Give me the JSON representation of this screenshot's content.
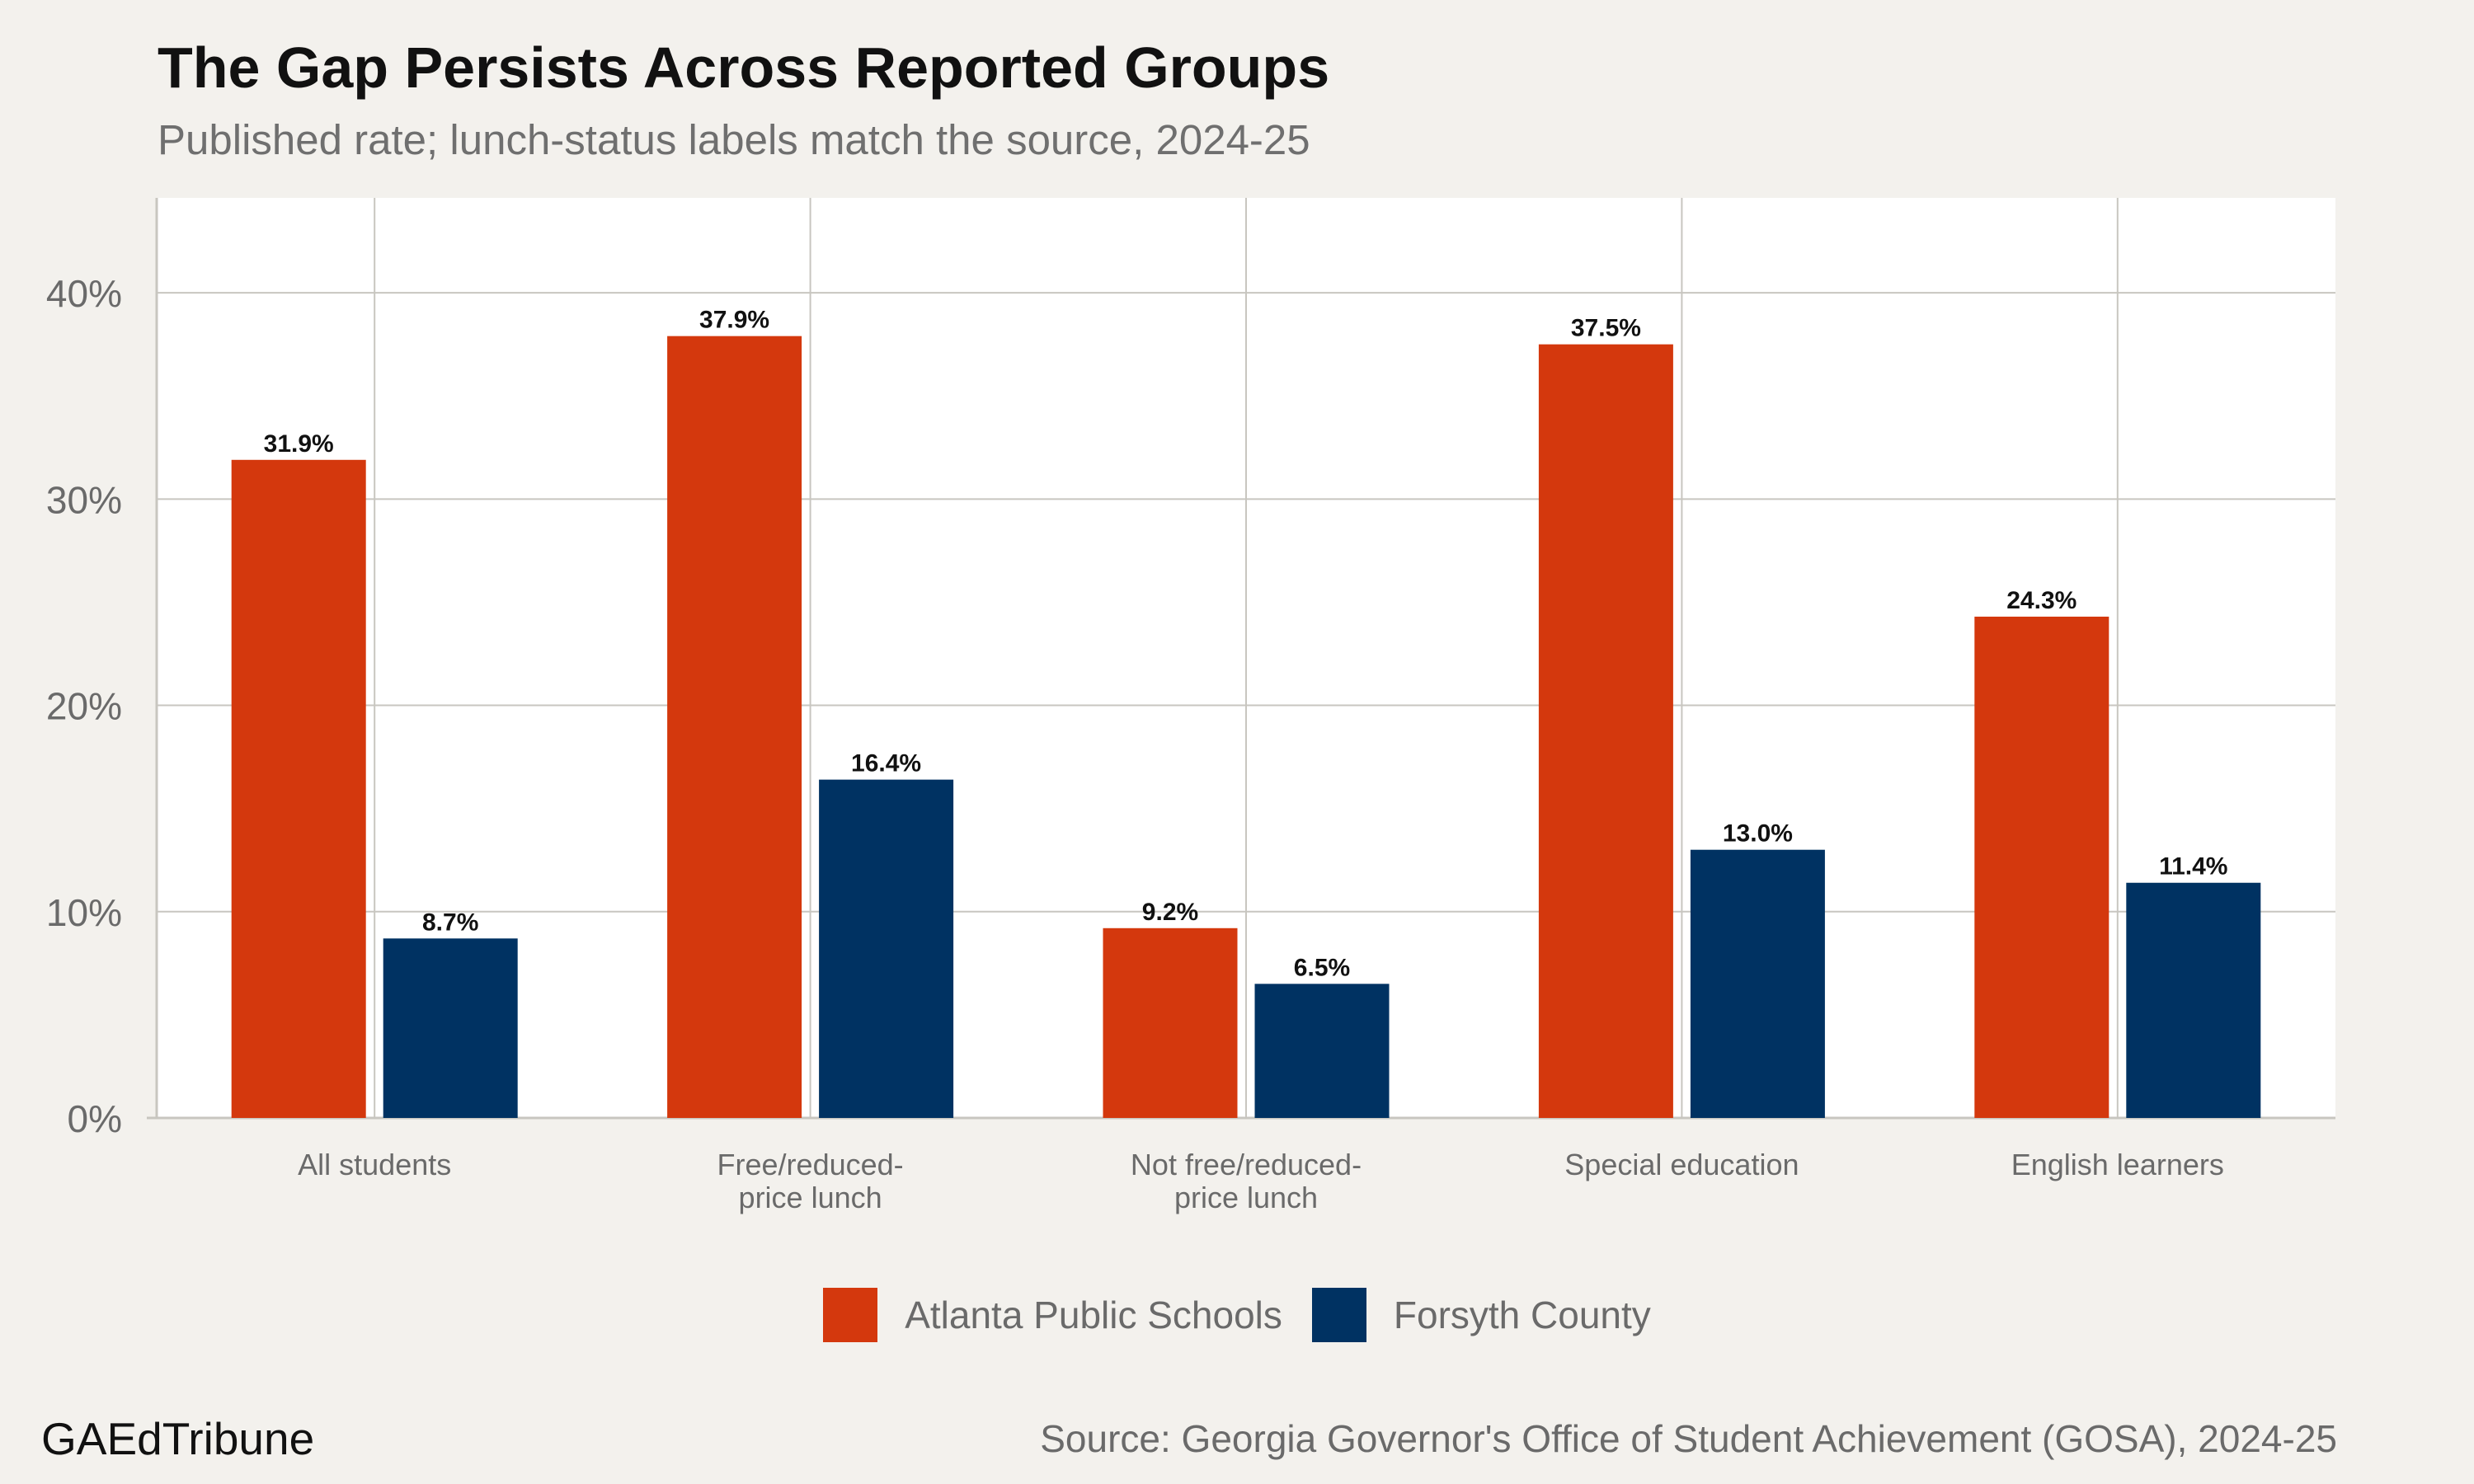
{
  "colors": {
    "background": "#f3f1ed",
    "plot_background": "#ffffff",
    "grid": "#c8c6c0",
    "atlanta": "#d4380d",
    "forsyth": "#003262"
  },
  "chart_data": {
    "type": "bar",
    "title": "The Gap Persists Across Reported Groups",
    "subtitle": "Published rate; lunch-status labels match the source, 2024-25",
    "categories": [
      [
        "All students"
      ],
      [
        "Free/reduced-",
        "price lunch"
      ],
      [
        "Not free/reduced-",
        "price lunch"
      ],
      [
        "Special education"
      ],
      [
        "English learners"
      ]
    ],
    "series": [
      {
        "name": "Atlanta Public Schools",
        "color": "#d4380d",
        "values": [
          31.9,
          37.9,
          9.2,
          37.5,
          24.3
        ],
        "labels": [
          "31.9%",
          "37.9%",
          "9.2%",
          "37.5%",
          "24.3%"
        ]
      },
      {
        "name": "Forsyth County",
        "color": "#003262",
        "values": [
          8.7,
          16.4,
          6.5,
          13.0,
          11.4
        ],
        "labels": [
          "8.7%",
          "16.4%",
          "6.5%",
          "13.0%",
          "11.4%"
        ]
      }
    ],
    "ylim": [
      0,
      44.6
    ],
    "yticks": [
      0,
      10,
      20,
      30,
      40
    ],
    "ytick_labels": [
      "0%",
      "10%",
      "20%",
      "30%",
      "40%"
    ],
    "grid": true,
    "legend_position": "bottom"
  },
  "footer": {
    "brand": "GAEdTribune",
    "source": "Source: Georgia Governor's Office of Student Achievement (GOSA), 2024-25"
  }
}
